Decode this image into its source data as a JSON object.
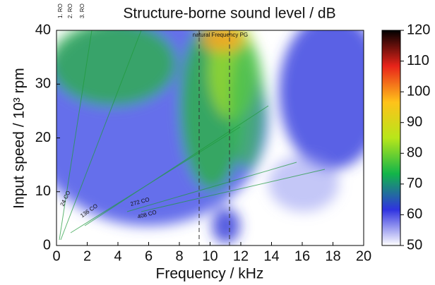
{
  "chart_data": {
    "type": "heatmap",
    "title": "Structure-borne sound level / dB",
    "xlabel": "Frequency / kHz",
    "ylabel": "Input speed / 10³ rpm",
    "xlim": [
      0,
      20
    ],
    "xticks": [
      0,
      2,
      4,
      6,
      8,
      10,
      12,
      14,
      16,
      18,
      20
    ],
    "ylim": [
      0,
      40
    ],
    "yticks": [
      0,
      10,
      20,
      30,
      40
    ],
    "colorbar_lim": [
      50,
      120
    ],
    "colorbar_ticks": [
      50,
      60,
      70,
      80,
      90,
      100,
      110,
      120
    ],
    "colorscale": [
      "#ffffff",
      "#2f33e0",
      "#12b54a",
      "#b8e61a",
      "#ffc21a",
      "#e8241a",
      "#000000"
    ],
    "annotations": [
      "1. RO",
      "2. RO",
      "3. RO",
      "natural Frequency PG",
      "24 CO",
      "136 CO",
      "272 CO",
      "408 CO"
    ]
  }
}
